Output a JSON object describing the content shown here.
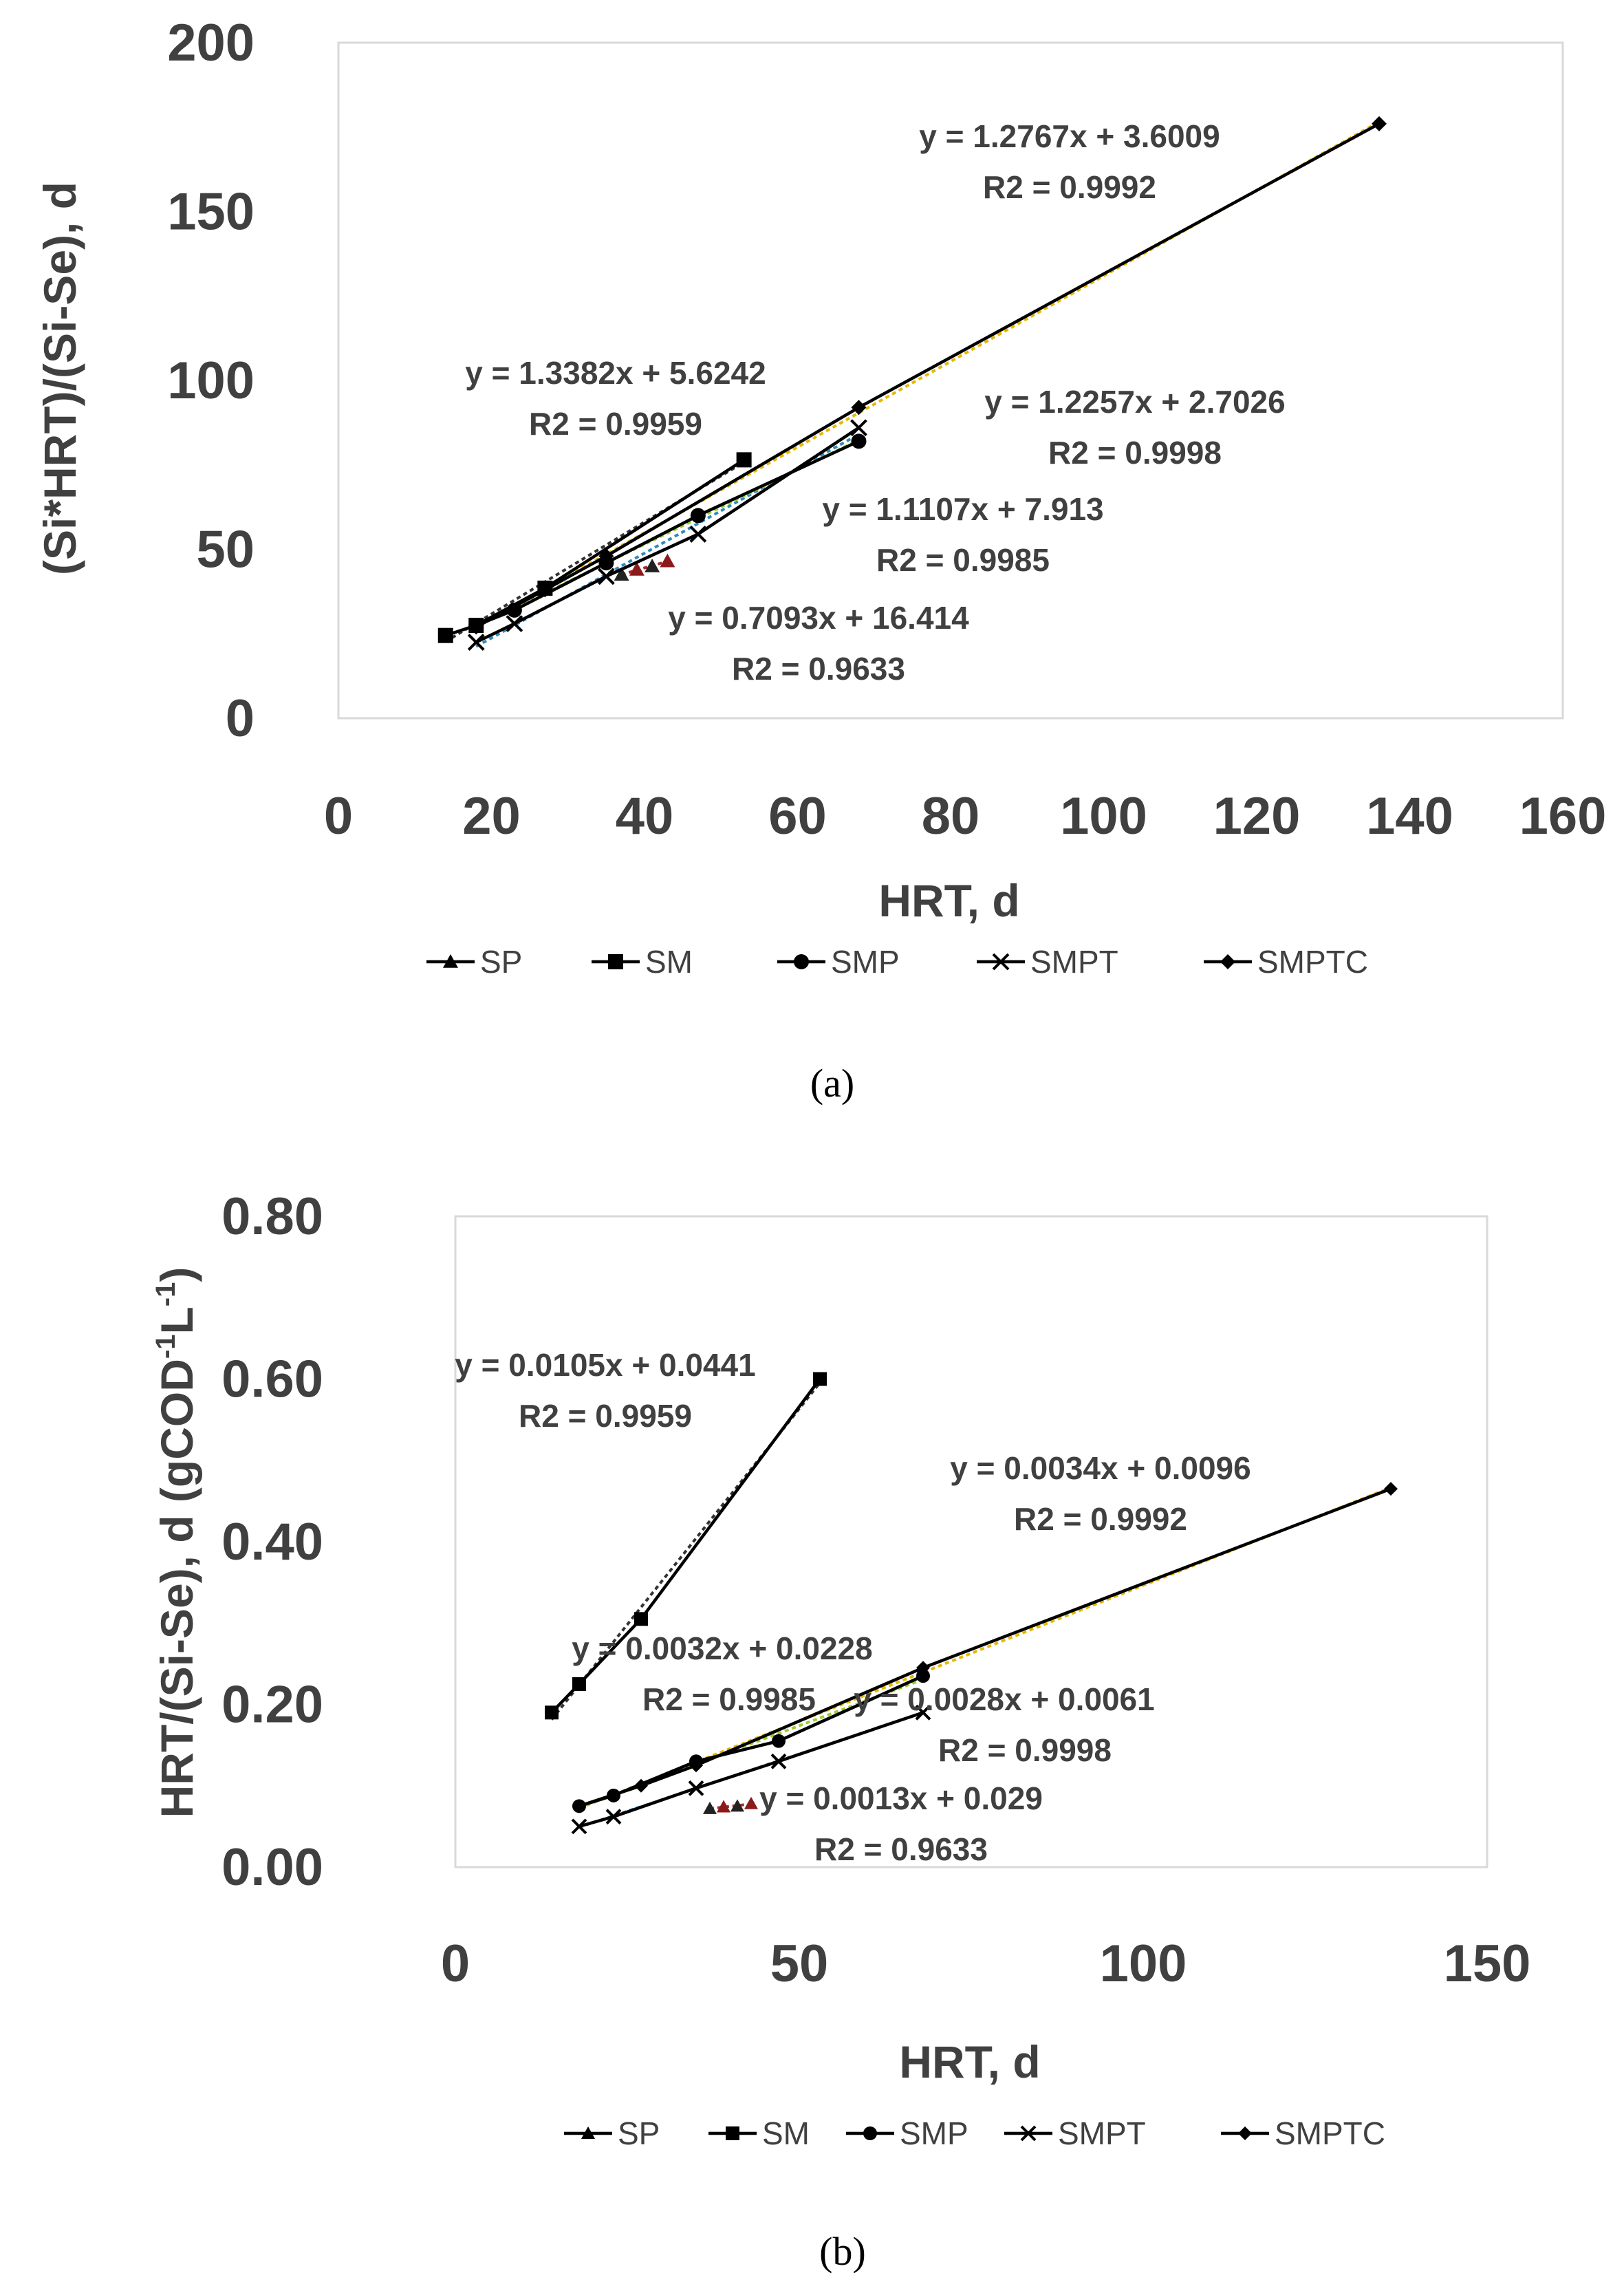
{
  "chart_data": [
    {
      "type": "scatter",
      "panel": "(a)",
      "xlabel": "HRT, d",
      "ylabel": "(Si*HRT)/(Si-Se), d",
      "xlim": [
        0,
        160
      ],
      "ylim": [
        0,
        200
      ],
      "xticks": [
        "0",
        "20",
        "40",
        "60",
        "80",
        "100",
        "120",
        "140",
        "160"
      ],
      "yticks": [
        "0",
        "50",
        "100",
        "150",
        "200"
      ],
      "legend_position": "bottom",
      "series": [
        {
          "name": "SP",
          "marker": "triangle",
          "color": "#000000",
          "x": [
            37,
            39,
            41,
            43
          ],
          "y": [
            42.5,
            44,
            45,
            46.5
          ]
        },
        {
          "name": "SM",
          "marker": "square",
          "color": "#000000",
          "x": [
            14,
            18,
            27,
            53
          ],
          "y": [
            24.5,
            27.5,
            38.5,
            76.5
          ]
        },
        {
          "name": "SMP",
          "marker": "circle",
          "color": "#000000",
          "x": [
            18,
            23,
            35,
            47,
            68
          ],
          "y": [
            27.5,
            32,
            46,
            60,
            82
          ]
        },
        {
          "name": "SMPT",
          "marker": "x",
          "color": "#000000",
          "x": [
            18,
            23,
            35,
            47,
            68
          ],
          "y": [
            22.5,
            28,
            42,
            54.5,
            86
          ]
        },
        {
          "name": "SMPTC",
          "marker": "diamond",
          "color": "#000000",
          "x": [
            18,
            27,
            35,
            68,
            136
          ],
          "y": [
            27,
            38,
            48,
            92,
            176
          ]
        }
      ],
      "trendlines": [
        {
          "series": "SMPTC",
          "equation": "y = 1.2767x + 3.6009",
          "r2": "R2 = 0.9992",
          "color": "#E6B800"
        },
        {
          "series": "SM",
          "equation": "y = 1.3382x + 5.6242",
          "r2": "R2 = 0.9959",
          "color": "#333333"
        },
        {
          "series": "SMPT",
          "equation": "y = 1.2257x + 2.7026",
          "r2": "R2 = 0.9998",
          "color": "#2E8BC0"
        },
        {
          "series": "SMP",
          "equation": "y = 1.1107x + 7.913",
          "r2": "R2 = 0.9985",
          "color": "#9ACD32"
        },
        {
          "series": "SP",
          "equation": "y = 0.7093x + 16.414",
          "r2": "R2 = 0.9633",
          "color": "#A52A2A"
        }
      ]
    },
    {
      "type": "scatter",
      "panel": "(b)",
      "xlabel": "HRT, d",
      "ylabel_main": "HRT/(Si-Se), d (gCOD",
      "ylabel_sup1": "-1",
      "ylabel_mid": "L",
      "ylabel_sup2": "-1",
      "ylabel_end": ")",
      "xlim": [
        0,
        150
      ],
      "ylim": [
        0,
        0.8
      ],
      "xticks": [
        "0",
        "50",
        "100",
        "150"
      ],
      "yticks": [
        "0.00",
        "0.20",
        "0.40",
        "0.60",
        "0.80"
      ],
      "legend_position": "bottom",
      "series": [
        {
          "name": "SP",
          "marker": "triangle",
          "color": "#000000",
          "x": [
            37,
            39,
            41,
            43
          ],
          "y": [
            0.072,
            0.074,
            0.075,
            0.078
          ]
        },
        {
          "name": "SM",
          "marker": "square",
          "color": "#000000",
          "x": [
            14,
            18,
            27,
            53
          ],
          "y": [
            0.19,
            0.225,
            0.305,
            0.6
          ]
        },
        {
          "name": "SMP",
          "marker": "circle",
          "color": "#000000",
          "x": [
            18,
            23,
            35,
            47,
            68
          ],
          "y": [
            0.075,
            0.088,
            0.13,
            0.155,
            0.235
          ]
        },
        {
          "name": "SMPT",
          "marker": "x",
          "color": "#000000",
          "x": [
            18,
            23,
            35,
            47,
            68
          ],
          "y": [
            0.05,
            0.062,
            0.097,
            0.13,
            0.19
          ]
        },
        {
          "name": "SMPTC",
          "marker": "diamond",
          "color": "#000000",
          "x": [
            18,
            27,
            35,
            68,
            136
          ],
          "y": [
            0.075,
            0.1,
            0.125,
            0.245,
            0.465
          ]
        }
      ],
      "trendlines": [
        {
          "series": "SM",
          "equation": "y = 0.0105x + 0.0441",
          "r2": "R2 = 0.9959",
          "color": "#333333"
        },
        {
          "series": "SMPTC",
          "equation": "y = 0.0034x + 0.0096",
          "r2": "R2 = 0.9992",
          "color": "#E6B800"
        },
        {
          "series": "SMP",
          "equation": "y = 0.0032x + 0.0228",
          "r2": "R2 = 0.9985",
          "color": "#9ACD32"
        },
        {
          "series": "SMPT",
          "equation": "y = 0.0028x + 0.0061",
          "r2": "R2 = 0.9998",
          "color": "#2E8BC0"
        },
        {
          "series": "SP",
          "equation": "y = 0.0013x + 0.029",
          "r2": "R2 = 0.9633",
          "color": "#A52A2A"
        }
      ]
    }
  ]
}
